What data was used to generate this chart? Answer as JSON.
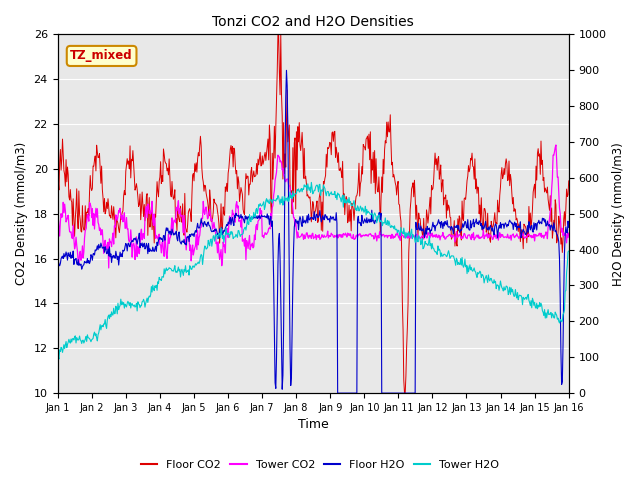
{
  "title": "Tonzi CO2 and H2O Densities",
  "xlabel": "Time",
  "ylabel_left": "CO2 Density (mmol/m3)",
  "ylabel_right": "H2O Density (mmol/m3)",
  "ylim_left": [
    10,
    26
  ],
  "ylim_right": [
    0,
    1000
  ],
  "yticks_left": [
    10,
    12,
    14,
    16,
    18,
    20,
    22,
    24,
    26
  ],
  "yticks_right": [
    0,
    100,
    200,
    300,
    400,
    500,
    600,
    700,
    800,
    900,
    1000
  ],
  "xtick_labels": [
    "Jan 1",
    "Jan 2",
    "Jan 3",
    "Jan 4",
    "Jan 5",
    "Jan 6",
    "Jan 7",
    "Jan 8",
    "Jan 9",
    "Jan 10",
    "Jan 11",
    "Jan 12",
    "Jan 13",
    "Jan 14",
    "Jan 15",
    "Jan 16"
  ],
  "n_days": 15,
  "pts_per_day": 48,
  "annotation_text": "TZ_mixed",
  "annotation_color": "#cc0000",
  "annotation_bg": "#ffffcc",
  "annotation_border": "#cc8800",
  "colors": {
    "floor_co2": "#dd0000",
    "tower_co2": "#ff00ff",
    "floor_h2o": "#0000cc",
    "tower_h2o": "#00cccc"
  },
  "legend_labels": [
    "Floor CO2",
    "Tower CO2",
    "Floor H2O",
    "Tower H2O"
  ],
  "bg_color": "#e8e8e8",
  "figsize": [
    6.4,
    4.8
  ],
  "dpi": 100
}
